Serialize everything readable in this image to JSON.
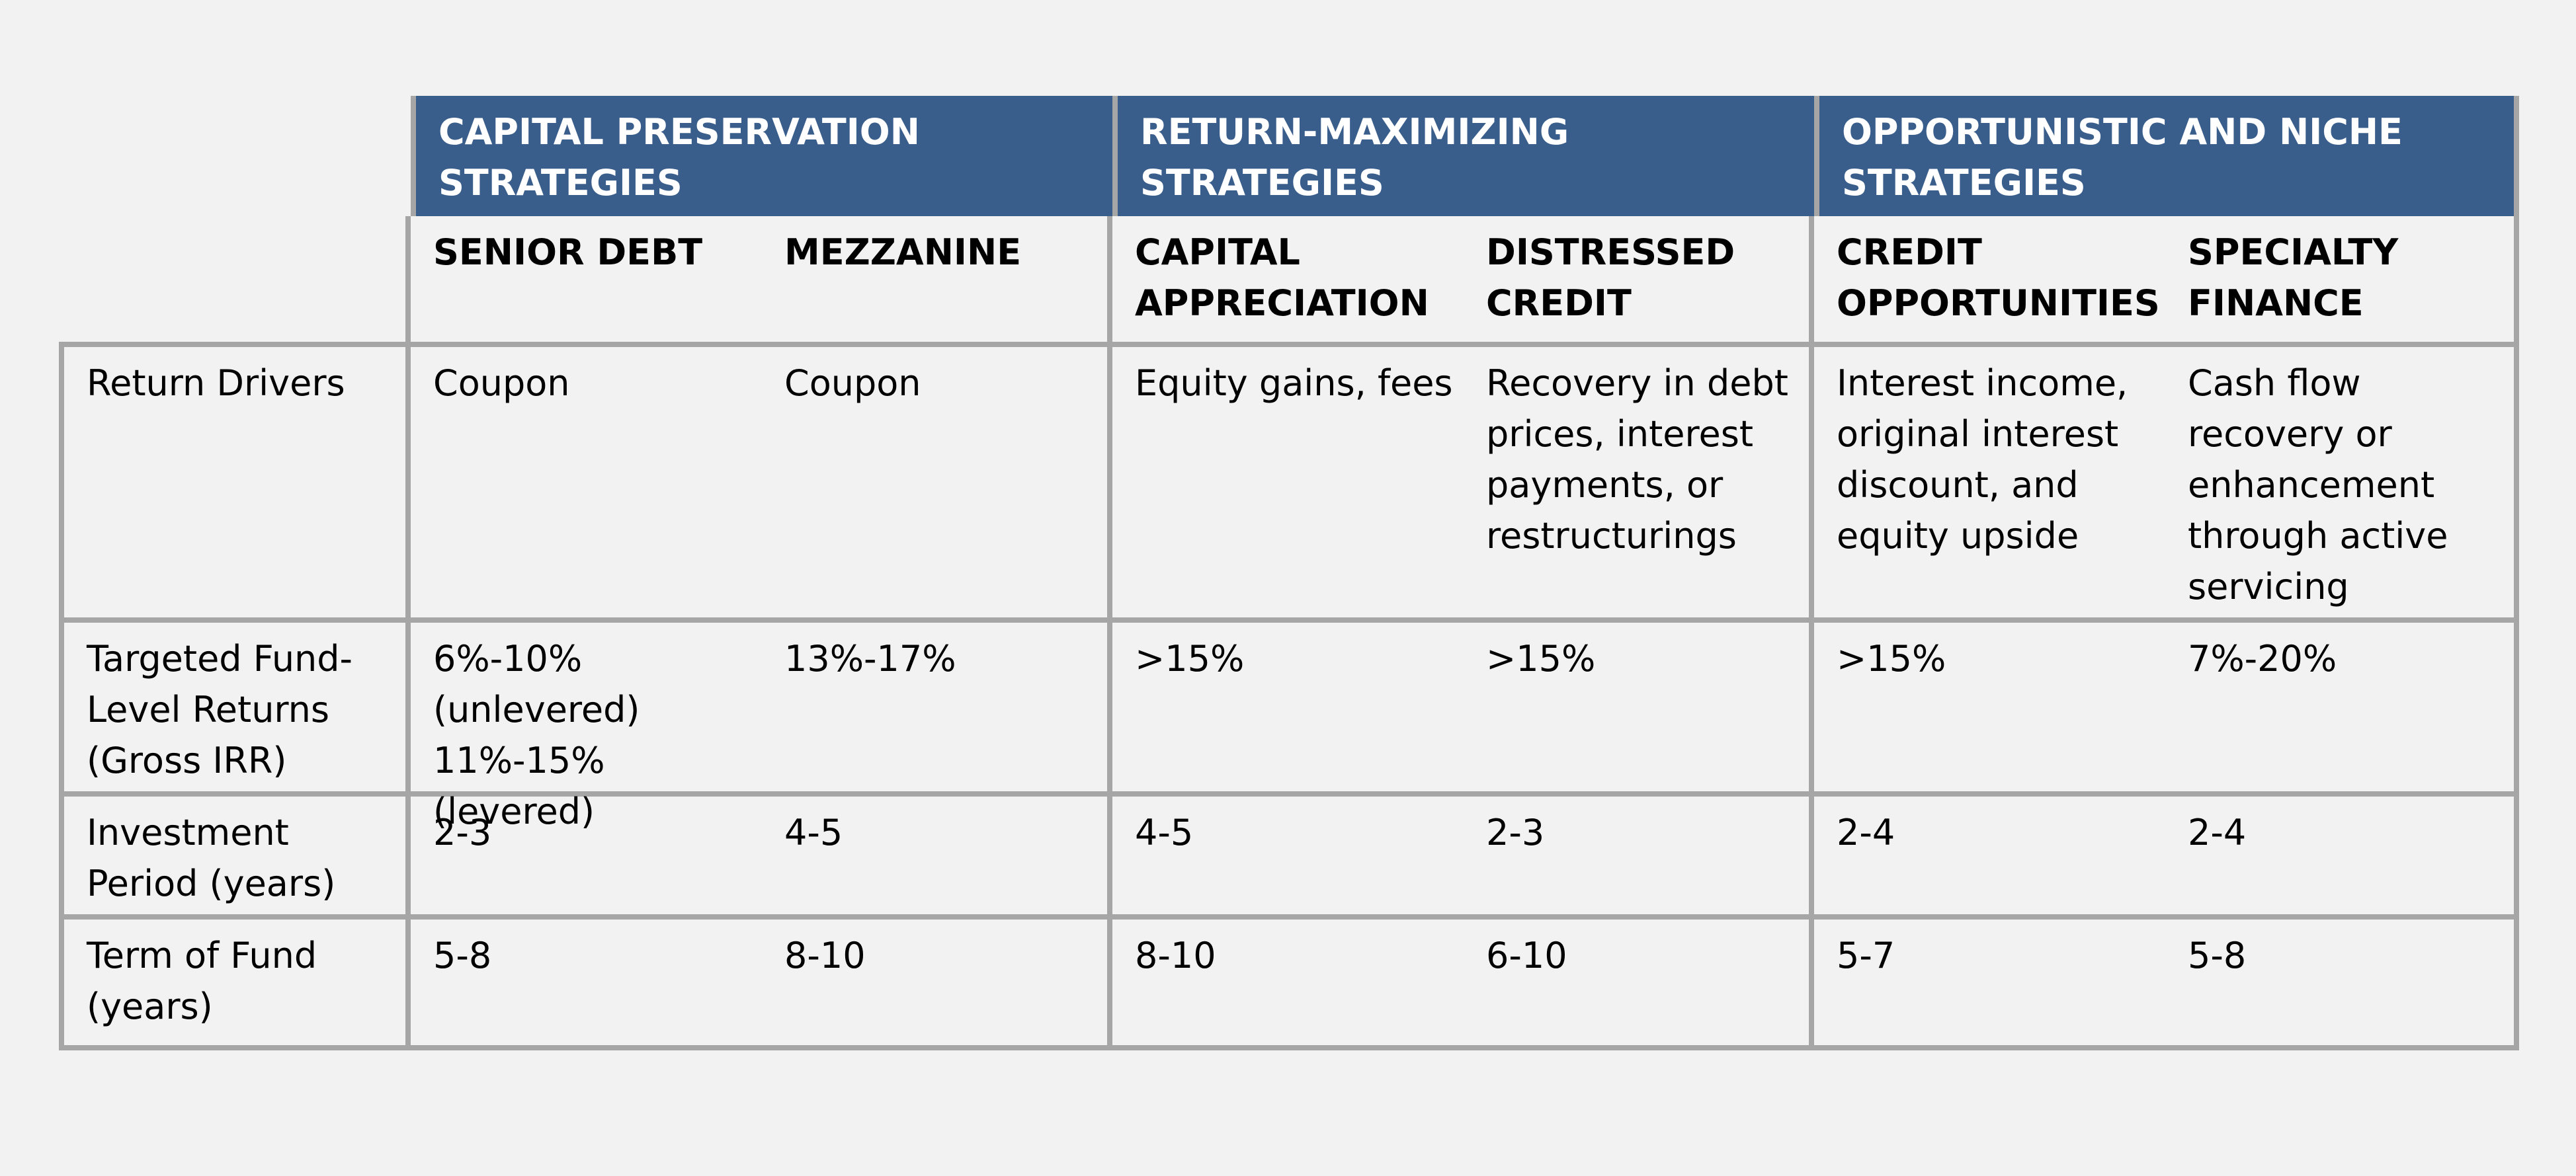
{
  "groups": [
    {
      "label": "CAPITAL PRESERVATION STRATEGIES"
    },
    {
      "label": "RETURN-MAXIMIZING STRATEGIES"
    },
    {
      "label": "OPPORTUNISTIC AND NICHE STRATEGIES"
    }
  ],
  "columns": [
    "SENIOR DEBT",
    "MEZZANINE",
    "CAPITAL APPRECIATION",
    "DISTRESSED CREDIT",
    "CREDIT OPPORTUNITIES",
    "SPECIALTY FINANCE"
  ],
  "rows": [
    {
      "label": "Return Drivers",
      "cells": [
        "Coupon",
        "Coupon",
        "Equity gains, fees",
        "Recovery in debt prices, interest payments, or restructurings",
        "Interest income, original interest discount, and equity upside",
        "Cash flow recovery or enhancement through active servicing"
      ]
    },
    {
      "label": "Targeted Fund-Level Returns (Gross IRR)",
      "cells": [
        "6%-10% (unlevered) 11%-15%(levered)",
        "13%-17%",
        ">15%",
        ">15%",
        ">15%",
        "7%-20%"
      ]
    },
    {
      "label": "Investment Period (years)",
      "cells": [
        "2-3",
        "4-5",
        "4-5",
        "2-3",
        "2-4",
        "2-4"
      ]
    },
    {
      "label": "Term of Fund (years)",
      "cells": [
        "5-8",
        "8-10",
        "8-10",
        "6-10",
        "5-7",
        "5-8"
      ]
    }
  ]
}
